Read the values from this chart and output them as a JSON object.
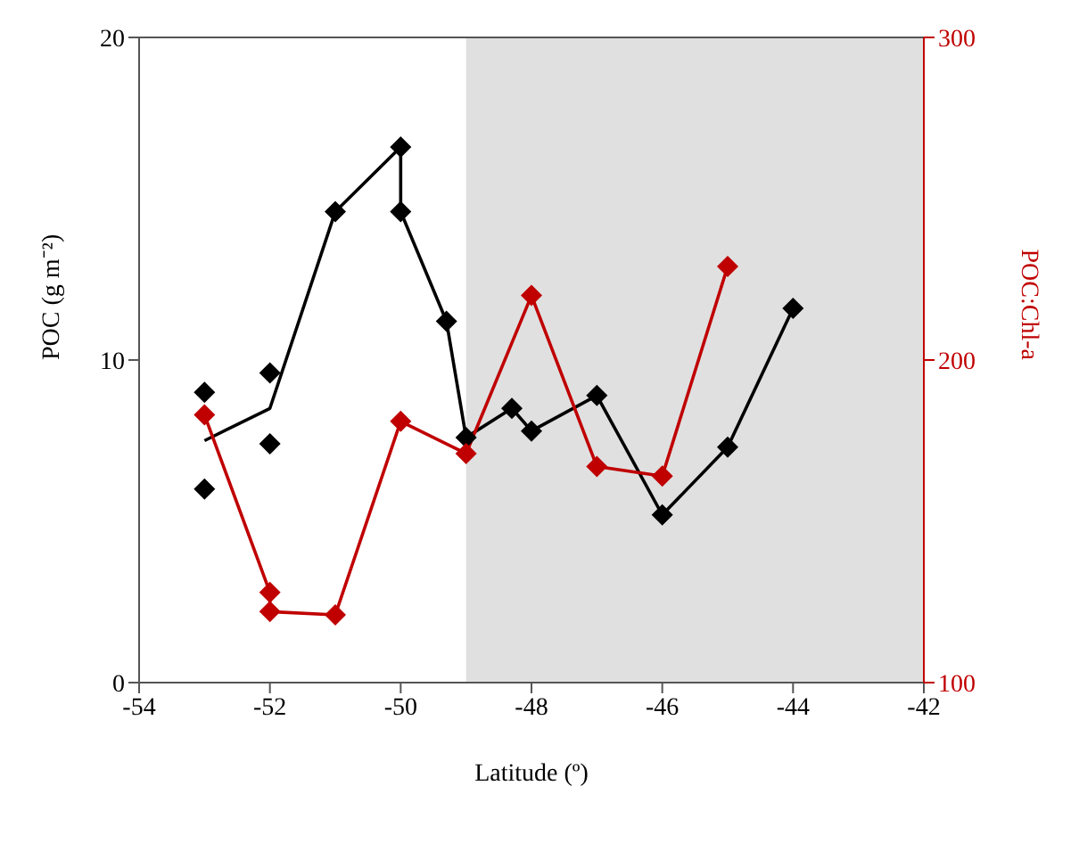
{
  "chart_data": {
    "type": "line",
    "xlabel": "Latitude (º)",
    "ylabel": "POC (g m⁻²)",
    "y2label": "POC:Chl-a",
    "xlim": [
      -54,
      -42
    ],
    "xticks": [
      -54,
      -52,
      -50,
      -48,
      -46,
      -44,
      -42
    ],
    "ylim": [
      0,
      20
    ],
    "yticks": [
      0,
      10,
      20
    ],
    "y2lim": [
      100,
      300
    ],
    "y2ticks": [
      100,
      200,
      300
    ],
    "grid": false,
    "bands": [
      {
        "axis": "x",
        "from": -49,
        "to": -42,
        "color": "#e0e0e0"
      }
    ],
    "series": [
      {
        "color": "#000000",
        "marker": "none",
        "x": [
          -53,
          -52,
          -51,
          -50,
          -50,
          -49.3,
          -49,
          -48.3,
          -48,
          -47,
          -46,
          -45,
          -44
        ],
        "values": [
          7.5,
          8.5,
          14.6,
          16.6,
          14.6,
          11.2,
          7.6,
          8.5,
          7.8,
          8.9,
          5.2,
          7.3,
          11.6
        ]
      },
      {
        "type": "scatter",
        "color": "#000000",
        "marker": "diamond",
        "x": [
          -53,
          -53,
          -52,
          -52,
          -51,
          -50,
          -50,
          -49.3,
          -49,
          -48.3,
          -48,
          -47,
          -46,
          -45,
          -44
        ],
        "values": [
          9.0,
          6.0,
          9.6,
          7.4,
          14.6,
          16.6,
          14.6,
          11.2,
          7.6,
          8.5,
          7.8,
          8.9,
          5.2,
          7.3,
          11.6
        ]
      },
      {
        "axis": "y2",
        "color": "#c00000",
        "marker": "diamond",
        "x": [
          -53,
          -52,
          -52,
          -51,
          -50,
          -49,
          -48,
          -47,
          -46,
          -45
        ],
        "values": [
          183,
          128,
          122,
          121,
          181,
          171,
          220,
          167,
          164,
          229
        ]
      }
    ]
  }
}
